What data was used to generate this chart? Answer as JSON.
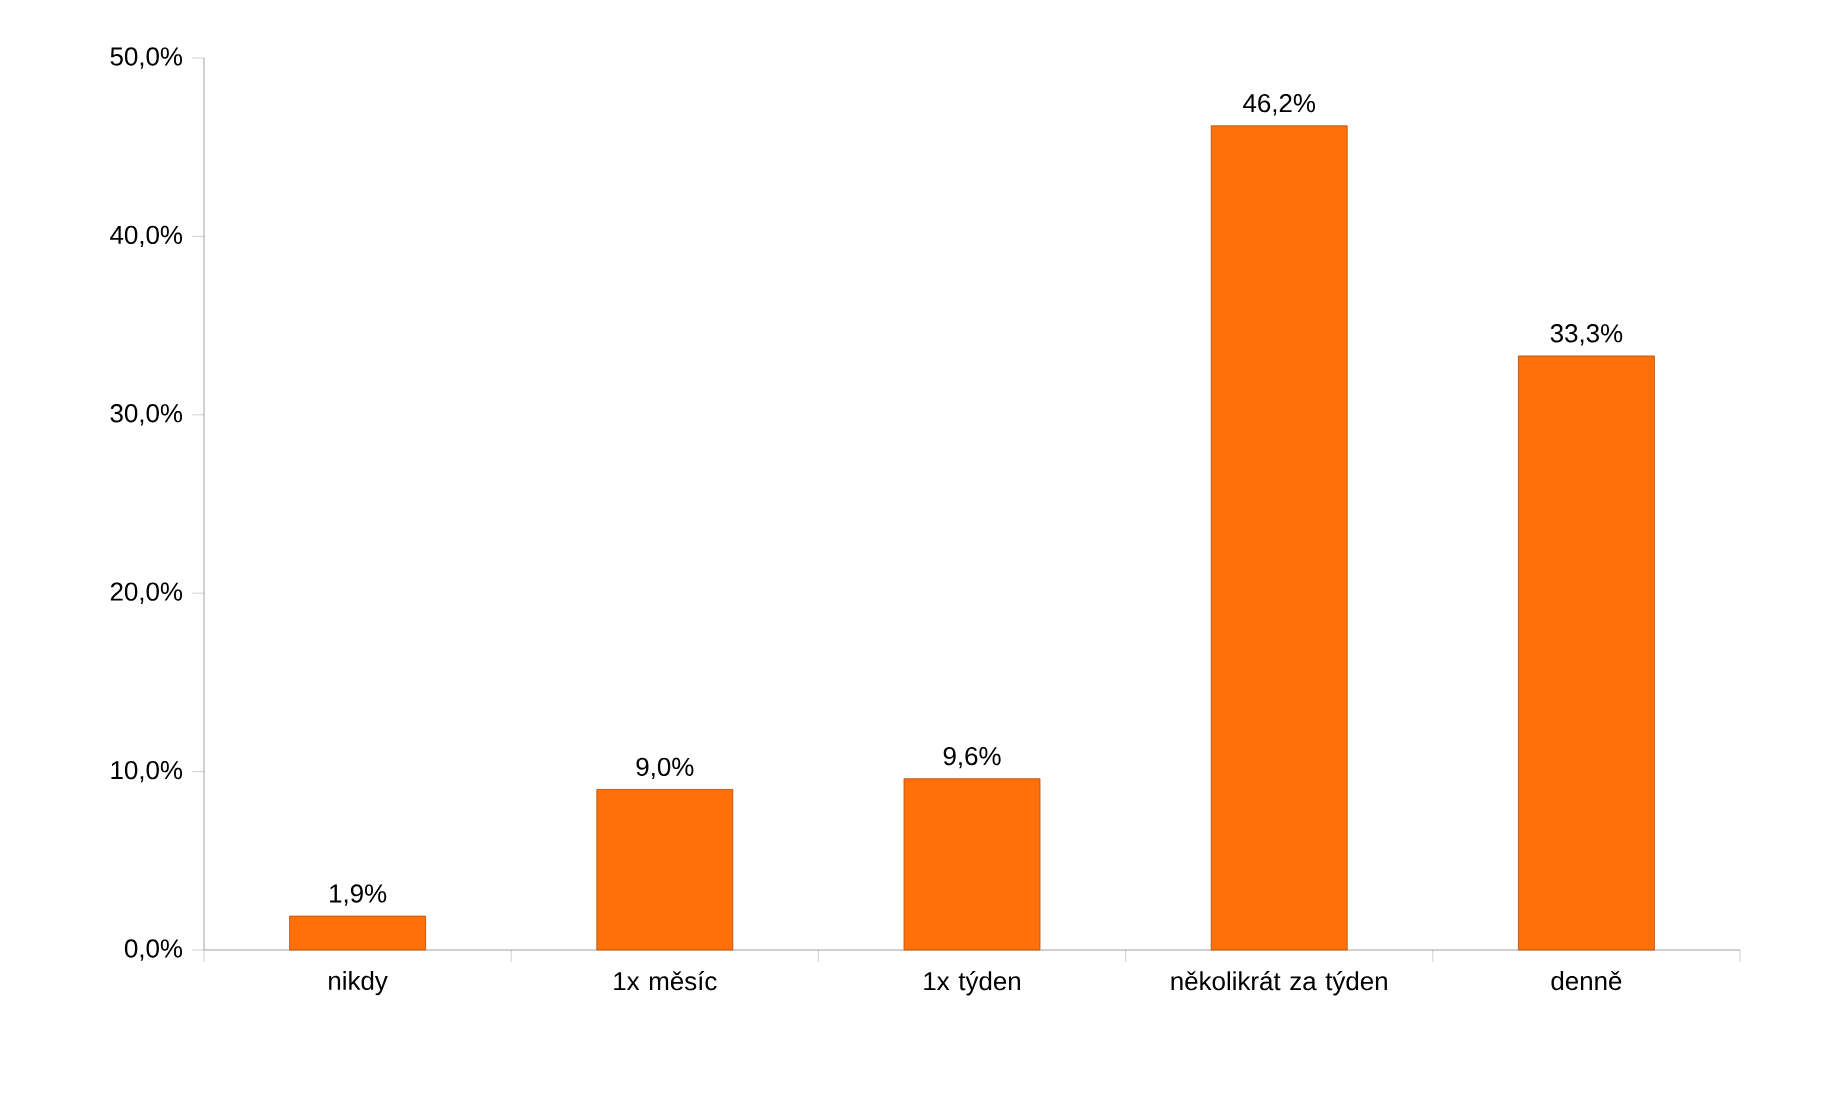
{
  "chart_data": {
    "type": "bar",
    "categories": [
      "nikdy",
      "1x měsíc",
      "1x týden",
      "několikrát za týden",
      "denně"
    ],
    "values": [
      1.9,
      9.0,
      9.6,
      46.2,
      33.3
    ],
    "value_labels": [
      "1,9%",
      "9,0%",
      "9,6%",
      "46,2%",
      "33,3%"
    ],
    "color": "#ff6f0a",
    "ylim": [
      0,
      50
    ],
    "yticks": [
      {
        "value": 0,
        "label": "0,0%"
      },
      {
        "value": 10,
        "label": "10,0%"
      },
      {
        "value": 20,
        "label": "20,0%"
      },
      {
        "value": 30,
        "label": "30,0%"
      },
      {
        "value": 40,
        "label": "40,0%"
      },
      {
        "value": 50,
        "label": "50,0%"
      }
    ],
    "grid": false
  }
}
